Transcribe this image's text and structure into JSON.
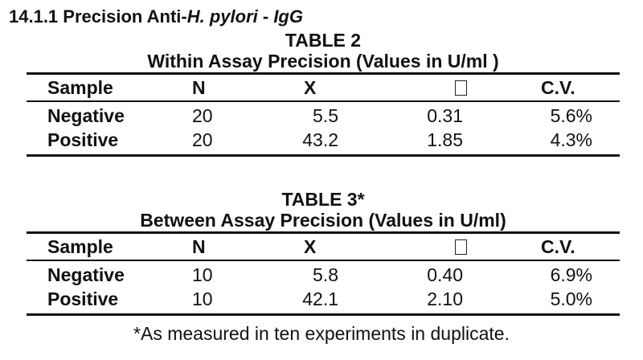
{
  "section": {
    "number": "14.1.1",
    "title_before": "Precision Anti-",
    "title_italic": "H. pylori",
    "title_after": " - ",
    "title_end": "IgG"
  },
  "columns": [
    "Sample",
    "N",
    "X",
    "",
    "C.V."
  ],
  "sd_symbol_icon": "missing-glyph-box",
  "table2": {
    "label": "TABLE 2",
    "caption": "Within Assay Precision (Values in U/ml )",
    "rows": [
      {
        "sample": "Negative",
        "n": "20",
        "x": "5.5",
        "sd": "0.31",
        "cv": "5.6%"
      },
      {
        "sample": "Positive",
        "n": "20",
        "x": "43.2",
        "sd": "1.85",
        "cv": "4.3%"
      }
    ]
  },
  "table3": {
    "label": "TABLE 3*",
    "caption": "Between Assay Precision (Values in U/ml)",
    "rows": [
      {
        "sample": "Negative",
        "n": "10",
        "x": "5.8",
        "sd": "0.40",
        "cv": "6.9%"
      },
      {
        "sample": "Positive",
        "n": "10",
        "x": "42.1",
        "sd": "2.10",
        "cv": "5.0%"
      }
    ]
  },
  "footnote": "*As measured in ten experiments in duplicate."
}
